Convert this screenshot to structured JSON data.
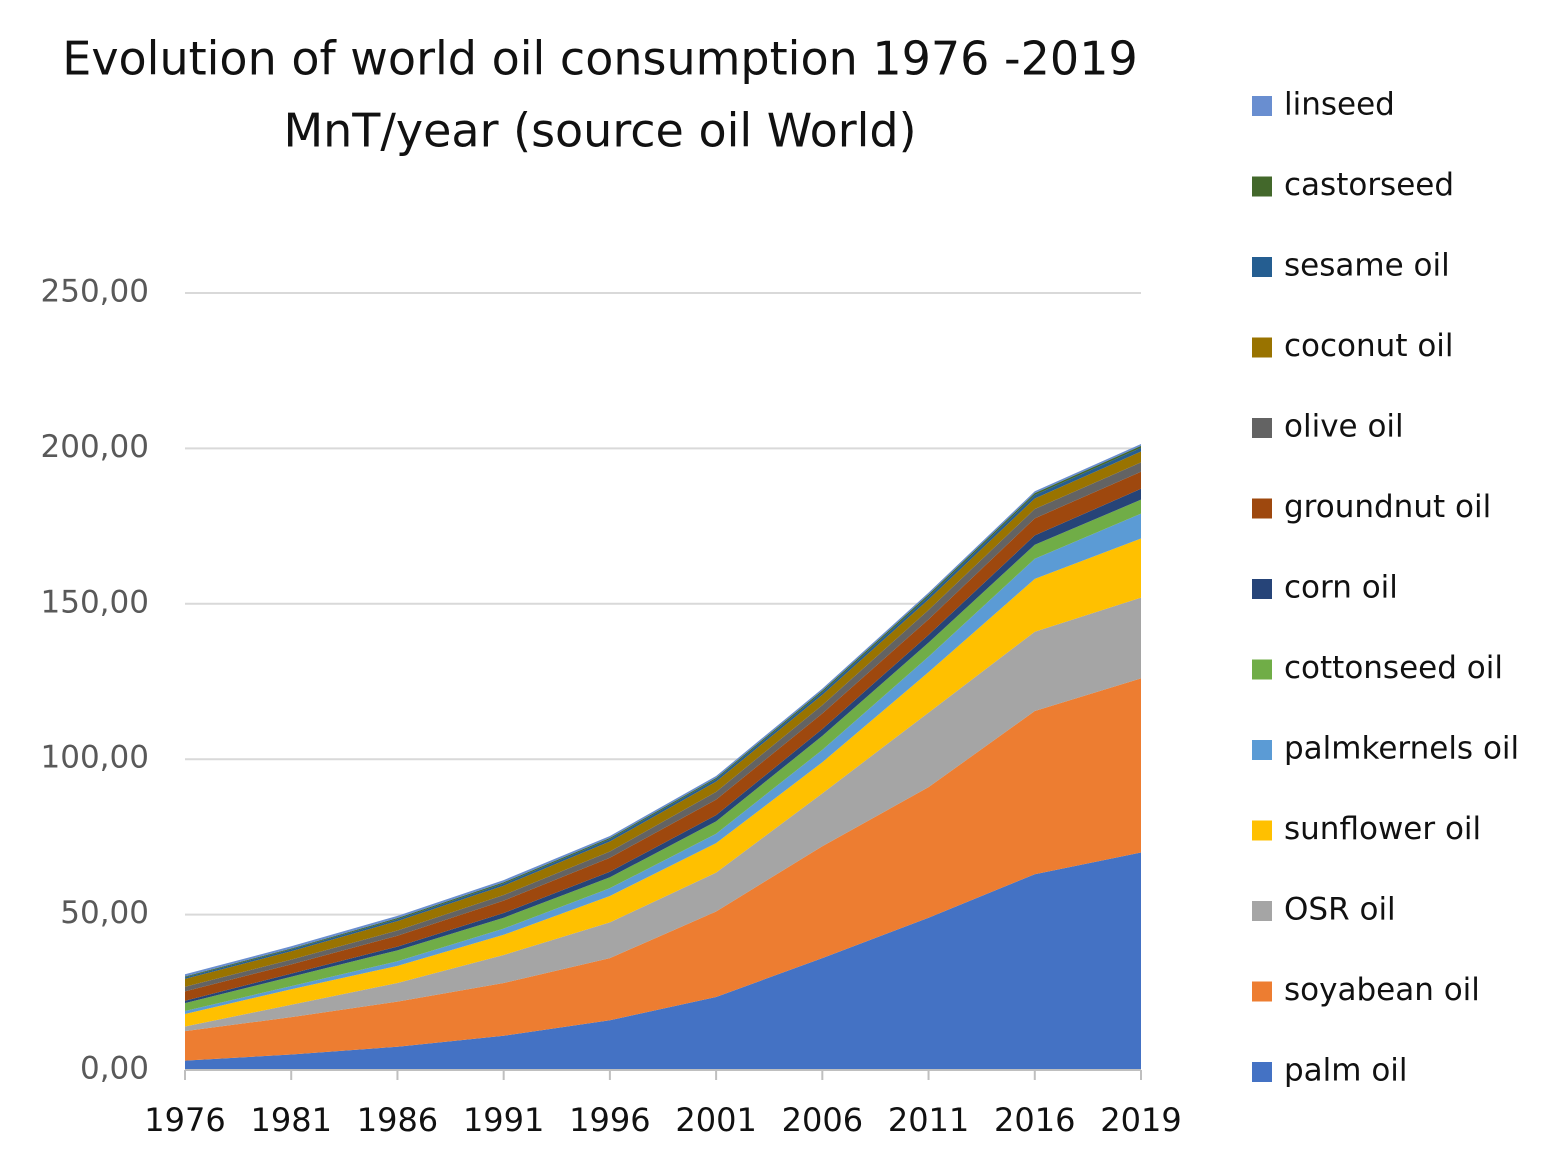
{
  "chart_data": {
    "type": "stacked_area",
    "title": [
      "Evolution of world oil consumption 1976 -2019",
      "MnT/year (source oil World)"
    ],
    "categories": [
      "1976",
      "1981",
      "1986",
      "1991",
      "1996",
      "2001",
      "2006",
      "2011",
      "2016",
      "2019"
    ],
    "ylim": [
      0,
      250
    ],
    "yticks": [
      {
        "value": 0,
        "label": "0,00"
      },
      {
        "value": 50,
        "label": "50,00"
      },
      {
        "value": 100,
        "label": "100,00"
      },
      {
        "value": 150,
        "label": "150,00"
      },
      {
        "value": 200,
        "label": "200,00"
      },
      {
        "value": 250,
        "label": "250,00"
      }
    ],
    "grid": true,
    "legend": "right",
    "series": [
      {
        "name": "palm oil",
        "color": "#4472c4",
        "values": [
          3,
          5,
          7.5,
          11,
          16,
          23.5,
          36,
          49,
          63,
          70
        ]
      },
      {
        "name": "soyabean oil",
        "color": "#ed7d31",
        "values": [
          9.5,
          12,
          14.5,
          17,
          20,
          27.5,
          36,
          42,
          52.5,
          56
        ]
      },
      {
        "name": "OSR oil",
        "color": "#a5a5a5",
        "values": [
          1.5,
          4,
          6,
          9,
          11.5,
          12.5,
          17,
          24,
          25.5,
          26
        ]
      },
      {
        "name": "sunflower oil",
        "color": "#ffc000",
        "values": [
          4,
          5,
          5.5,
          6.5,
          8.5,
          9.5,
          10,
          13,
          17,
          19
        ]
      },
      {
        "name": "palmkernels oil",
        "color": "#5b9bd5",
        "values": [
          1,
          1,
          1.5,
          2,
          2.5,
          3,
          4,
          5,
          6.5,
          8
        ]
      },
      {
        "name": "cottonseed oil",
        "color": "#70ad47",
        "values": [
          2.5,
          3,
          3.5,
          3.5,
          3.5,
          4,
          4.5,
          4.5,
          4.5,
          4.5
        ]
      },
      {
        "name": "corn oil",
        "color": "#264478",
        "values": [
          0.8,
          1,
          1.2,
          1.5,
          1.8,
          2,
          2.2,
          2.5,
          3,
          3.5
        ]
      },
      {
        "name": "groundnut oil",
        "color": "#9e480e",
        "values": [
          3,
          3,
          3.5,
          4,
          4.5,
          5,
          5,
          5,
          5.5,
          5.5
        ]
      },
      {
        "name": "olive oil",
        "color": "#636363",
        "values": [
          1.5,
          1.5,
          1.7,
          1.8,
          2,
          2.5,
          2.7,
          3,
          3,
          3
        ]
      },
      {
        "name": "coconut oil",
        "color": "#997300",
        "values": [
          2.5,
          2.7,
          3,
          3,
          3.2,
          3.3,
          3.3,
          3.4,
          3.4,
          3.5
        ]
      },
      {
        "name": "sesame oil",
        "color": "#255e91",
        "values": [
          0.5,
          0.6,
          0.6,
          0.7,
          0.8,
          0.8,
          0.9,
          1,
          1.1,
          1.2
        ]
      },
      {
        "name": "castorseed",
        "color": "#43682b",
        "values": [
          0.3,
          0.3,
          0.4,
          0.4,
          0.4,
          0.4,
          0.5,
          0.6,
          0.6,
          0.6
        ]
      },
      {
        "name": "linseed",
        "color": "#698ed0",
        "values": [
          0.7,
          0.7,
          0.7,
          0.7,
          0.6,
          0.6,
          0.6,
          0.6,
          0.6,
          0.6
        ]
      }
    ]
  }
}
